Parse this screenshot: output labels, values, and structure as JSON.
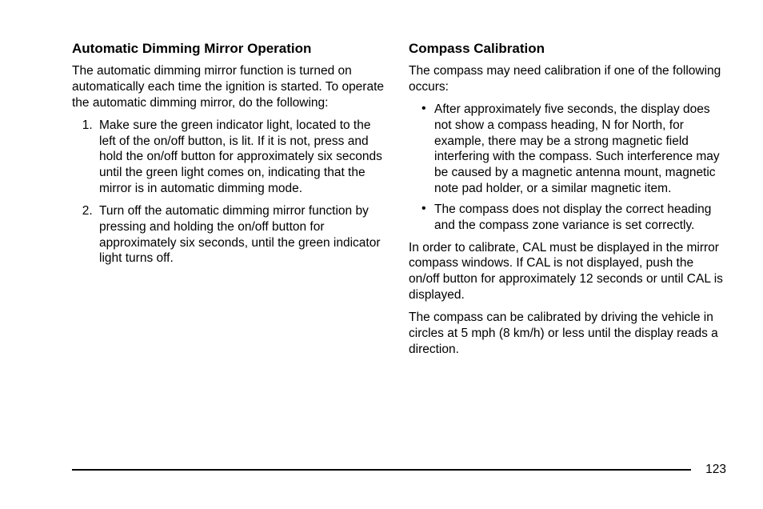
{
  "left": {
    "heading": "Automatic Dimming Mirror Operation",
    "intro": "The automatic dimming mirror function is turned on automatically each time the ignition is started. To operate the automatic dimming mirror, do the following:",
    "steps": {
      "s1": "Make sure the green indicator light, located to the left of the on/off button, is lit. If it is not, press and hold the on/off button for approximately six seconds until the green light comes on, indicating that the mirror is in automatic dimming mode.",
      "s2": "Turn off the automatic dimming mirror function by pressing and holding the on/off button for approximately six seconds, until the green indicator light turns off."
    }
  },
  "right": {
    "heading": "Compass Calibration",
    "intro": "The compass may need calibration if one of the following occurs:",
    "bullets": {
      "b1": "After approximately five seconds, the display does not show a compass heading, N for North, for example, there may be a strong magnetic field interfering with the compass. Such interference may be caused by a magnetic antenna mount, magnetic note pad holder, or a similar magnetic item.",
      "b2": "The compass does not display the correct heading and the compass zone variance is set correctly."
    },
    "p1": "In order to calibrate, CAL must be displayed in the mirror compass windows. If CAL is not displayed, push the on/off button for approximately 12 seconds or until CAL is displayed.",
    "p2": "The compass can be calibrated by driving the vehicle in circles at 5 mph (8 km/h) or less until the display reads a direction."
  },
  "page_number": "123"
}
